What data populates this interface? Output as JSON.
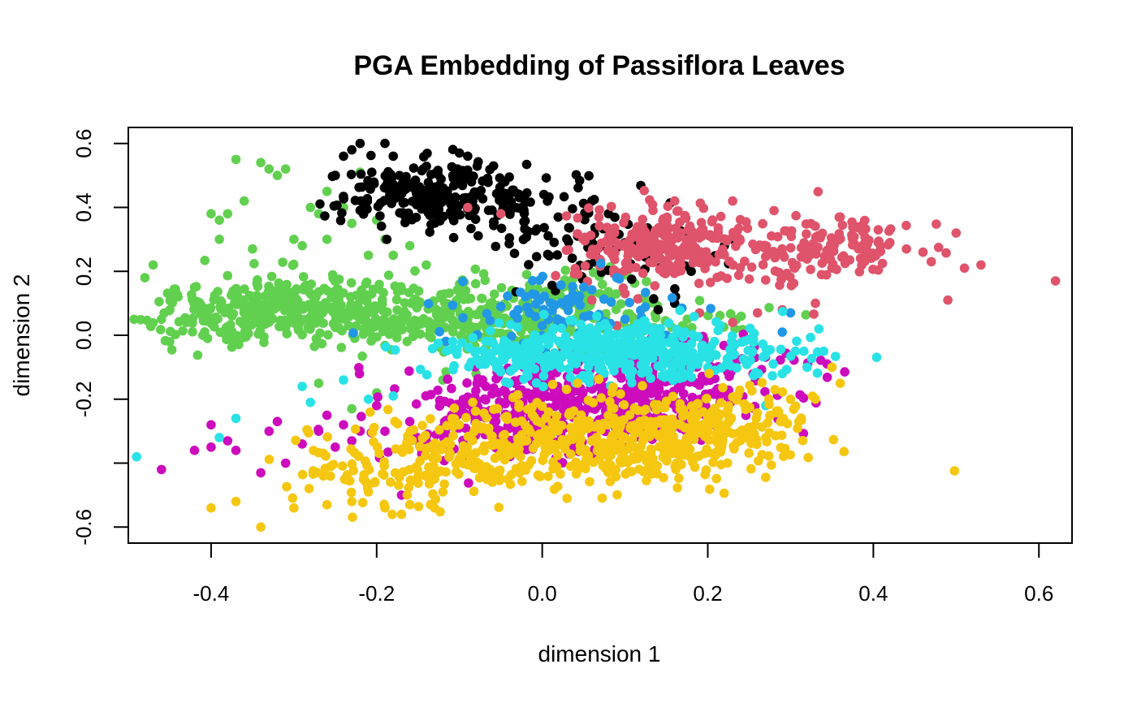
{
  "chart_data": {
    "type": "scatter",
    "title": "PGA Embedding of Passiflora Leaves",
    "xlabel": "dimension 1",
    "ylabel": "dimension 2",
    "xlim": [
      -0.5,
      0.64
    ],
    "ylim": [
      -0.65,
      0.65
    ],
    "xticks": [
      -0.4,
      -0.2,
      0.0,
      0.2,
      0.4,
      0.6
    ],
    "xtick_labels": [
      "-0.4",
      "-0.2",
      "0.0",
      "0.2",
      "0.4",
      "0.6"
    ],
    "yticks": [
      -0.6,
      -0.4,
      -0.2,
      0.0,
      0.2,
      0.4,
      0.6
    ],
    "ytick_labels": [
      "-0.6",
      "",
      "-0.2",
      "0.0",
      "0.2",
      "0.4",
      "0.6"
    ],
    "grid": false,
    "legend": "none",
    "series": [
      {
        "color": "#61D04F",
        "points": [
          [
            -0.48,
            0.18
          ],
          [
            -0.47,
            0.22
          ],
          [
            -0.46,
            0.05
          ],
          [
            -0.45,
            -0.02
          ],
          [
            -0.44,
            0.12
          ],
          [
            -0.43,
            0.04
          ],
          [
            -0.42,
            0.15
          ],
          [
            -0.41,
            0.0
          ],
          [
            -0.4,
            0.38
          ],
          [
            -0.39,
            0.36
          ],
          [
            -0.39,
            0.3
          ],
          [
            -0.38,
            0.38
          ],
          [
            -0.37,
            0.55
          ],
          [
            -0.36,
            0.42
          ],
          [
            -0.35,
            0.27
          ],
          [
            -0.34,
            0.54
          ],
          [
            -0.33,
            0.52
          ],
          [
            -0.32,
            0.5
          ],
          [
            -0.31,
            0.52
          ],
          [
            -0.3,
            0.3
          ],
          [
            -0.29,
            0.28
          ],
          [
            -0.28,
            0.4
          ],
          [
            -0.27,
            0.38
          ],
          [
            -0.26,
            0.45
          ],
          [
            -0.26,
            0.3
          ],
          [
            -0.25,
            0.5
          ],
          [
            -0.24,
            0.4
          ],
          [
            -0.23,
            0.35
          ],
          [
            -0.22,
            0.51
          ],
          [
            -0.21,
            0.25
          ],
          [
            -0.2,
            0.36
          ],
          [
            -0.19,
            0.3
          ],
          [
            -0.18,
            0.25
          ],
          [
            -0.16,
            0.28
          ],
          [
            -0.14,
            0.22
          ],
          [
            -0.27,
            -0.15
          ],
          [
            -0.23,
            -0.23
          ],
          [
            -0.2,
            -0.18
          ],
          [
            -0.12,
            -0.14
          ],
          [
            -0.08,
            -0.12
          ]
        ],
        "blobs": [
          {
            "cx": -0.3,
            "cy": 0.08,
            "sx": 0.1,
            "sy": 0.055,
            "n": 420
          },
          {
            "cx": -0.1,
            "cy": 0.05,
            "sx": 0.08,
            "sy": 0.05,
            "n": 160
          },
          {
            "cx": 0.02,
            "cy": 0.08,
            "sx": 0.07,
            "sy": 0.07,
            "n": 110
          },
          {
            "cx": 0.12,
            "cy": 0.05,
            "sx": 0.07,
            "sy": 0.05,
            "n": 60
          }
        ]
      },
      {
        "color": "#000000",
        "points": [
          [
            -0.25,
            0.5
          ],
          [
            -0.24,
            0.56
          ],
          [
            -0.23,
            0.58
          ],
          [
            -0.22,
            0.6
          ],
          [
            -0.19,
            0.6
          ],
          [
            -0.18,
            0.56
          ],
          [
            -0.1,
            0.57
          ],
          [
            -0.09,
            0.56
          ],
          [
            -0.02,
            0.42
          ],
          [
            0.06,
            0.42
          ],
          [
            0.08,
            0.38
          ],
          [
            0.12,
            0.32
          ],
          [
            0.15,
            0.2
          ],
          [
            0.18,
            0.2
          ],
          [
            0.19,
            0.26
          ],
          [
            0.22,
            0.28
          ],
          [
            0.23,
            0.3
          ],
          [
            0.16,
            0.1
          ],
          [
            0.14,
            0.08
          ]
        ],
        "blobs": [
          {
            "cx": -0.13,
            "cy": 0.44,
            "sx": 0.06,
            "sy": 0.05,
            "n": 230
          },
          {
            "cx": 0.0,
            "cy": 0.36,
            "sx": 0.06,
            "sy": 0.06,
            "n": 60
          },
          {
            "cx": 0.1,
            "cy": 0.25,
            "sx": 0.06,
            "sy": 0.05,
            "n": 50
          }
        ]
      },
      {
        "color": "#DF536B",
        "points": [
          [
            -0.09,
            0.4
          ],
          [
            -0.05,
            0.38
          ],
          [
            0.16,
            0.42
          ],
          [
            0.23,
            0.42
          ],
          [
            0.28,
            0.39
          ],
          [
            0.36,
            0.37
          ],
          [
            0.42,
            0.29
          ],
          [
            0.44,
            0.27
          ],
          [
            0.46,
            0.26
          ],
          [
            0.47,
            0.23
          ],
          [
            0.5,
            0.32
          ],
          [
            0.51,
            0.21
          ],
          [
            0.53,
            0.22
          ],
          [
            0.62,
            0.17
          ],
          [
            0.49,
            0.11
          ],
          [
            0.33,
            0.1
          ],
          [
            0.29,
            0.08
          ],
          [
            0.26,
            0.07
          ],
          [
            0.1,
            0.13
          ],
          [
            0.06,
            0.11
          ],
          [
            0.09,
            0.03
          ],
          [
            0.19,
            0.07
          ],
          [
            0.23,
            0.04
          ]
        ],
        "blobs": [
          {
            "cx": 0.14,
            "cy": 0.28,
            "sx": 0.05,
            "sy": 0.055,
            "n": 260
          },
          {
            "cx": 0.3,
            "cy": 0.25,
            "sx": 0.05,
            "sy": 0.06,
            "n": 80
          },
          {
            "cx": 0.38,
            "cy": 0.29,
            "sx": 0.04,
            "sy": 0.04,
            "n": 70
          }
        ]
      },
      {
        "color": "#2297E6",
        "points": [
          [
            -0.05,
            0.09
          ],
          [
            0.0,
            0.03
          ],
          [
            0.03,
            -0.02
          ],
          [
            0.1,
            0.05
          ],
          [
            0.15,
            0.0
          ],
          [
            0.18,
            -0.02
          ],
          [
            0.29,
            0.01
          ],
          [
            0.3,
            0.07
          ],
          [
            0.09,
            0.18
          ],
          [
            -0.02,
            0.12
          ]
        ],
        "blobs": [
          {
            "cx": 0.02,
            "cy": 0.06,
            "sx": 0.06,
            "sy": 0.06,
            "n": 90
          }
        ]
      },
      {
        "color": "#CD0BBC",
        "points": [
          [
            -0.46,
            -0.42
          ],
          [
            -0.42,
            -0.36
          ],
          [
            -0.4,
            -0.28
          ],
          [
            -0.4,
            -0.35
          ],
          [
            -0.38,
            -0.33
          ],
          [
            -0.37,
            -0.36
          ],
          [
            -0.34,
            -0.43
          ],
          [
            -0.33,
            -0.3
          ],
          [
            -0.32,
            -0.27
          ],
          [
            -0.31,
            -0.4
          ],
          [
            -0.29,
            -0.34
          ],
          [
            -0.27,
            -0.3
          ],
          [
            -0.26,
            -0.25
          ],
          [
            -0.24,
            -0.28
          ],
          [
            -0.22,
            -0.3
          ],
          [
            -0.2,
            -0.22
          ],
          [
            -0.19,
            -0.3
          ],
          [
            -0.17,
            -0.5
          ],
          [
            -0.16,
            -0.27
          ],
          [
            -0.14,
            -0.33
          ],
          [
            -0.25,
            -0.35
          ],
          [
            -0.23,
            -0.33
          ]
        ],
        "blobs": [
          {
            "cx": 0.05,
            "cy": -0.22,
            "sx": 0.1,
            "sy": 0.075,
            "n": 420
          },
          {
            "cx": -0.06,
            "cy": -0.3,
            "sx": 0.06,
            "sy": 0.05,
            "n": 90
          },
          {
            "cx": 0.18,
            "cy": -0.1,
            "sx": 0.07,
            "sy": 0.05,
            "n": 90
          }
        ]
      },
      {
        "color": "#28E2E5",
        "points": [
          [
            -0.49,
            -0.38
          ],
          [
            -0.39,
            -0.32
          ],
          [
            -0.37,
            -0.26
          ],
          [
            -0.29,
            -0.16
          ],
          [
            -0.28,
            -0.21
          ],
          [
            -0.24,
            -0.14
          ],
          [
            -0.21,
            -0.2
          ],
          [
            -0.18,
            -0.19
          ],
          [
            0.27,
            -0.22
          ],
          [
            0.29,
            -0.12
          ],
          [
            0.32,
            -0.1
          ],
          [
            0.34,
            -0.05
          ]
        ],
        "blobs": [
          {
            "cx": 0.12,
            "cy": -0.05,
            "sx": 0.09,
            "sy": 0.045,
            "n": 380
          },
          {
            "cx": -0.03,
            "cy": -0.06,
            "sx": 0.05,
            "sy": 0.04,
            "n": 90
          }
        ]
      },
      {
        "color": "#F5C710",
        "points": [
          [
            -0.4,
            -0.54
          ],
          [
            -0.37,
            -0.52
          ],
          [
            -0.34,
            -0.6
          ],
          [
            -0.3,
            -0.54
          ],
          [
            -0.26,
            -0.53
          ],
          [
            -0.23,
            -0.52
          ],
          [
            -0.21,
            -0.49
          ],
          [
            -0.19,
            -0.54
          ],
          [
            -0.17,
            -0.56
          ],
          [
            -0.16,
            -0.53
          ],
          [
            -0.13,
            -0.54
          ],
          [
            -0.12,
            -0.49
          ],
          [
            0.03,
            -0.51
          ],
          [
            0.27,
            -0.32
          ],
          [
            0.29,
            -0.26
          ],
          [
            0.31,
            -0.27
          ],
          [
            0.33,
            -0.2
          ],
          [
            0.35,
            -0.1
          ],
          [
            0.36,
            -0.15
          ],
          [
            0.3,
            -0.2
          ]
        ],
        "blobs": [
          {
            "cx": 0.05,
            "cy": -0.33,
            "sx": 0.12,
            "sy": 0.07,
            "n": 520
          },
          {
            "cx": -0.18,
            "cy": -0.43,
            "sx": 0.06,
            "sy": 0.05,
            "n": 90
          },
          {
            "cx": 0.2,
            "cy": -0.28,
            "sx": 0.06,
            "sy": 0.05,
            "n": 120
          }
        ]
      }
    ]
  }
}
